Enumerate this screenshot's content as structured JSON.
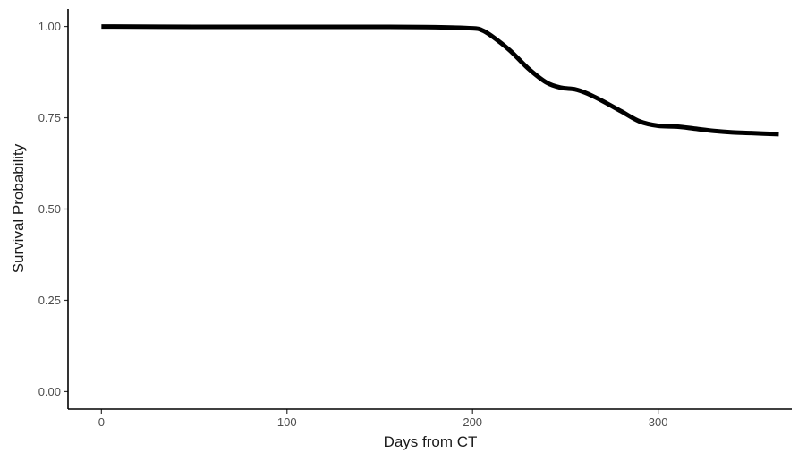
{
  "chart_data": {
    "type": "line",
    "xlabel": "Days from CT",
    "ylabel": "Survival Probability",
    "xlim": [
      -18,
      372
    ],
    "ylim": [
      -0.048,
      1.048
    ],
    "x_ticks": [
      0,
      100,
      200,
      300
    ],
    "y_ticks": [
      0.0,
      0.25,
      0.5,
      0.75,
      1.0
    ],
    "grid": false,
    "legend": "none",
    "series": [
      {
        "color": "#000000",
        "x": [
          0,
          50,
          100,
          155,
          180,
          200,
          205,
          210,
          220,
          230,
          240,
          248,
          255,
          262,
          270,
          280,
          290,
          300,
          310,
          320,
          330,
          340,
          350,
          365
        ],
        "y": [
          1.0,
          0.999,
          0.999,
          0.999,
          0.998,
          0.995,
          0.99,
          0.975,
          0.935,
          0.885,
          0.846,
          0.832,
          0.828,
          0.816,
          0.796,
          0.768,
          0.74,
          0.728,
          0.726,
          0.72,
          0.714,
          0.71,
          0.708,
          0.705
        ]
      }
    ]
  }
}
